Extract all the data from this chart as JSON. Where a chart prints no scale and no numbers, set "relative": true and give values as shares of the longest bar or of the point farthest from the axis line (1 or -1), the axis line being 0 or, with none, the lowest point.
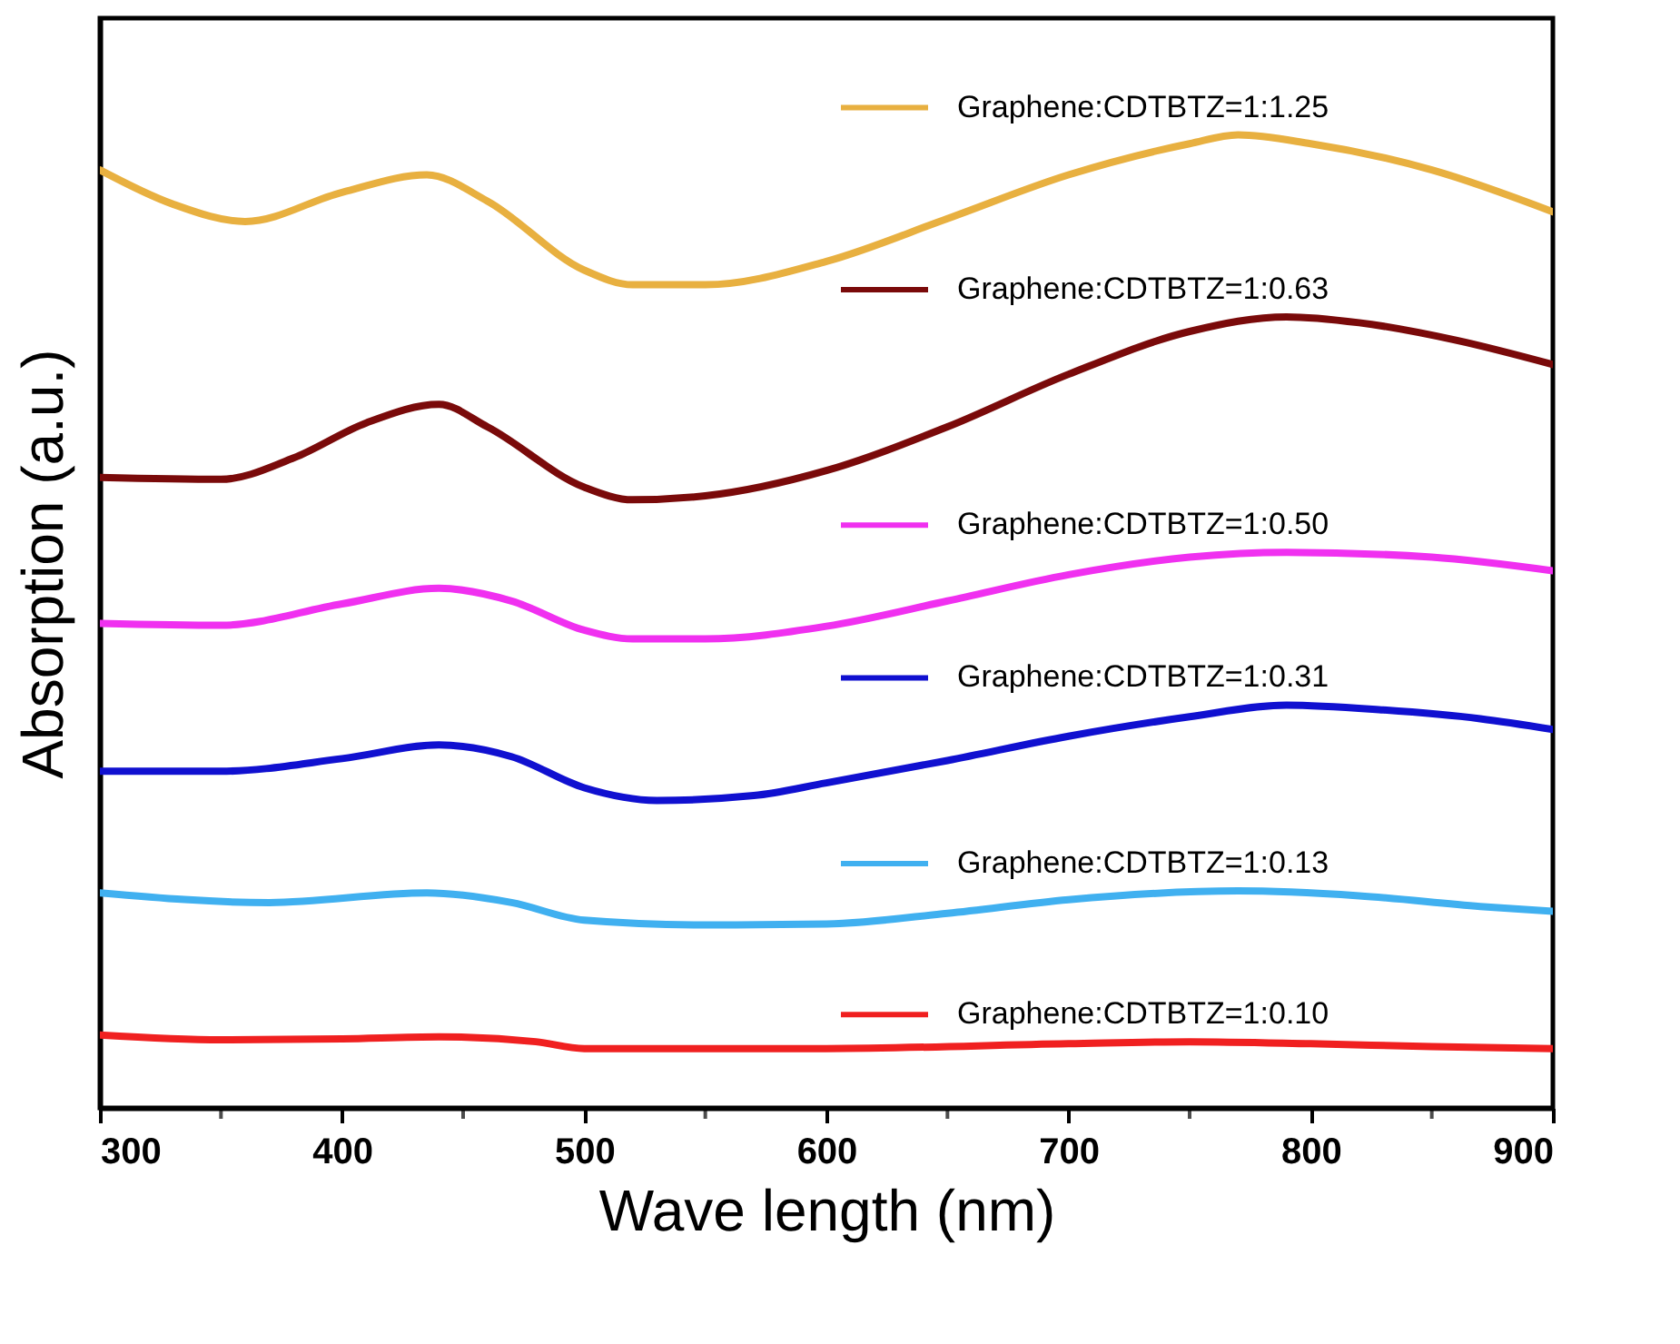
{
  "chart_data": {
    "type": "line",
    "relative": true,
    "xlabel": "Wave length (nm)",
    "ylabel": "Absorption (a.u.)",
    "xlim": [
      300,
      900
    ],
    "xticks": [
      300,
      400,
      500,
      600,
      700,
      800,
      900
    ],
    "legend": "top right",
    "grid": false,
    "series": [
      {
        "name": "Graphene:CDTBTZ=1:1.25",
        "color": "#e8b040",
        "x": [
          300,
          330,
          360,
          400,
          435,
          460,
          500,
          520,
          550,
          600,
          650,
          700,
          750,
          770,
          800,
          850,
          900
        ],
        "values": [
          0.964,
          0.929,
          0.911,
          0.941,
          0.959,
          0.932,
          0.861,
          0.846,
          0.846,
          0.87,
          0.914,
          0.959,
          0.991,
          1,
          0.991,
          0.964,
          0.921
        ]
      },
      {
        "name": "Graphene:CDTBTZ=1:0.63",
        "color": "#7a0a0a",
        "x": [
          300,
          350,
          380,
          410,
          440,
          460,
          500,
          520,
          550,
          600,
          650,
          700,
          750,
          790,
          820,
          860,
          900
        ],
        "values": [
          0.648,
          0.646,
          0.668,
          0.704,
          0.723,
          0.7,
          0.638,
          0.625,
          0.629,
          0.655,
          0.7,
          0.754,
          0.798,
          0.813,
          0.807,
          0.789,
          0.764
        ]
      },
      {
        "name": "Graphene:CDTBTZ=1:0.50",
        "color": "#f030f0",
        "x": [
          300,
          350,
          400,
          440,
          470,
          500,
          520,
          550,
          600,
          650,
          700,
          750,
          790,
          850,
          900
        ],
        "values": [
          0.498,
          0.496,
          0.518,
          0.534,
          0.521,
          0.491,
          0.482,
          0.482,
          0.495,
          0.521,
          0.548,
          0.566,
          0.571,
          0.566,
          0.552
        ]
      },
      {
        "name": "Graphene:CDTBTZ=1:0.31",
        "color": "#1010d0",
        "x": [
          300,
          350,
          400,
          440,
          470,
          500,
          530,
          570,
          600,
          650,
          700,
          750,
          790,
          830,
          870,
          900
        ],
        "values": [
          0.346,
          0.346,
          0.359,
          0.373,
          0.361,
          0.329,
          0.316,
          0.321,
          0.334,
          0.357,
          0.382,
          0.402,
          0.414,
          0.409,
          0.4,
          0.389
        ]
      },
      {
        "name": "Graphene:CDTBTZ=1:0.13",
        "color": "#40b0f0",
        "x": [
          300,
          370,
          435,
          470,
          500,
          550,
          600,
          650,
          700,
          770,
          820,
          870,
          900
        ],
        "values": [
          0.221,
          0.211,
          0.221,
          0.211,
          0.193,
          0.188,
          0.189,
          0.2,
          0.214,
          0.223,
          0.218,
          0.207,
          0.202
        ]
      },
      {
        "name": "Graphene:CDTBTZ=1:0.10",
        "color": "#f02020",
        "x": [
          300,
          350,
          400,
          440,
          480,
          500,
          550,
          600,
          700,
          750,
          800,
          850,
          900
        ],
        "values": [
          0.075,
          0.07,
          0.071,
          0.073,
          0.068,
          0.061,
          0.061,
          0.061,
          0.066,
          0.068,
          0.066,
          0.063,
          0.061
        ]
      }
    ]
  }
}
